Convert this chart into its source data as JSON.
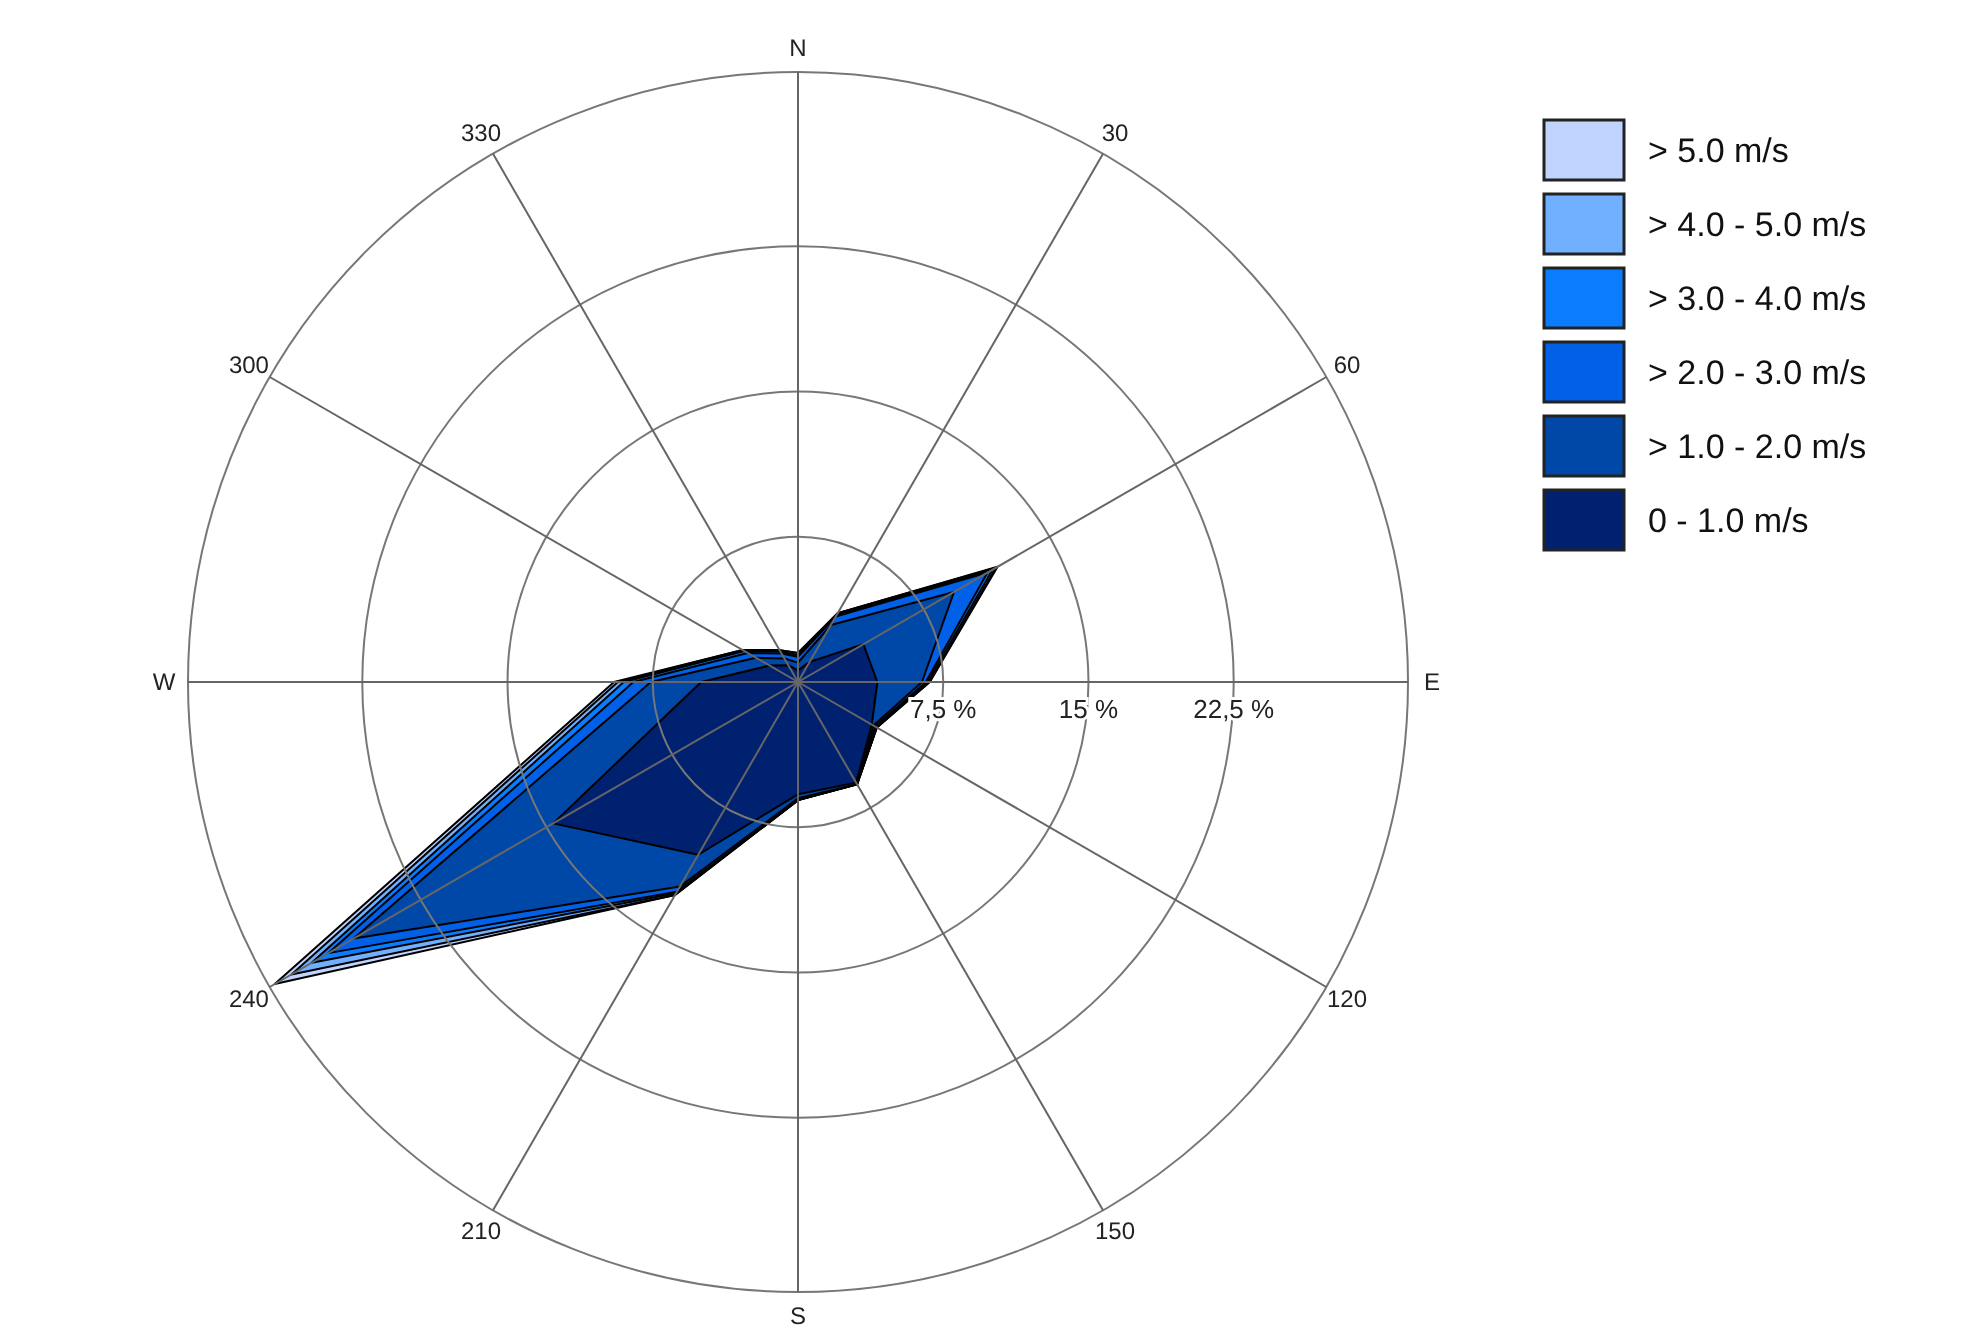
{
  "chart_data": {
    "type": "radar",
    "categories": [
      "N",
      "30",
      "60",
      "E",
      "120",
      "150",
      "S",
      "210",
      "240",
      "W",
      "300",
      "330"
    ],
    "ylim": [
      0,
      31.5
    ],
    "yticks": [
      {
        "value": 7.5,
        "label": "7,5 %"
      },
      {
        "value": 15,
        "label": "15 %"
      },
      {
        "value": 22.5,
        "label": "22,5 %"
      }
    ],
    "legend": "top right",
    "grid": true,
    "series": [
      {
        "name": "> 5.0 m/s",
        "color": "#c0d4ff",
        "values": [
          1.5,
          4.1,
          11.9,
          6.8,
          4.7,
          6.1,
          6.1,
          12.7,
          31.2,
          9.5,
          3.3,
          1.9
        ]
      },
      {
        "name": "> 4.0 - 5.0 m/s",
        "color": "#70b0ff",
        "values": [
          1.5,
          4.1,
          11.8,
          6.8,
          4.7,
          6.1,
          6.1,
          12.7,
          30.2,
          9.3,
          3.3,
          1.9
        ]
      },
      {
        "name": "> 3.0 - 4.0 m/s",
        "color": "#0a7dff",
        "values": [
          1.4,
          4.0,
          11.6,
          6.7,
          4.7,
          6.1,
          6.1,
          12.6,
          29.0,
          9.0,
          3.2,
          1.8
        ]
      },
      {
        "name": "> 2.0 - 3.0 m/s",
        "color": "#0060e8",
        "values": [
          1.3,
          3.9,
          11.3,
          6.6,
          4.6,
          6.1,
          6.1,
          12.5,
          28.0,
          8.5,
          3.0,
          1.7
        ]
      },
      {
        "name": "> 1.0 - 2.0 m/s",
        "color": "#0048a8",
        "values": [
          1.0,
          3.4,
          9.3,
          6.4,
          4.5,
          6.1,
          6.0,
          12.2,
          26.5,
          7.6,
          2.5,
          1.4
        ]
      },
      {
        "name": "0 - 1.0 m/s",
        "color": "#002070",
        "values": [
          0.6,
          1.2,
          3.9,
          4.1,
          4.4,
          6.0,
          5.8,
          10.3,
          14.6,
          5.0,
          1.7,
          1.0
        ]
      }
    ]
  }
}
